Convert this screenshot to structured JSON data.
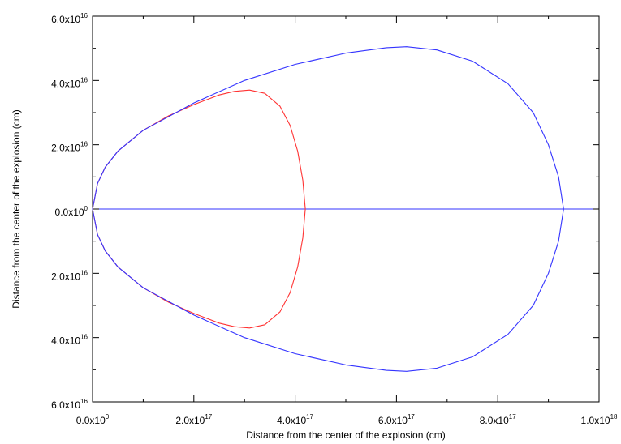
{
  "chart_data": {
    "type": "line",
    "title": "",
    "xlabel": "Distance from the center of the explosion (cm)",
    "ylabel": "Distance from the center of the explosion (cm)",
    "xlim": [
      0,
      1e+18
    ],
    "ylim": [
      -6e+16,
      6e+16
    ],
    "grid": false,
    "legend": "none",
    "x_ticks": [
      {
        "value": 0,
        "mantissa": "0.0",
        "exp": "0"
      },
      {
        "value": 2e+17,
        "mantissa": "2.0",
        "exp": "17"
      },
      {
        "value": 4e+17,
        "mantissa": "4.0",
        "exp": "17"
      },
      {
        "value": 6e+17,
        "mantissa": "6.0",
        "exp": "17"
      },
      {
        "value": 8e+17,
        "mantissa": "8.0",
        "exp": "17"
      },
      {
        "value": 1e+18,
        "mantissa": "1.0",
        "exp": "18"
      }
    ],
    "y_ticks": [
      {
        "value": 6e+16,
        "mantissa": "6.0",
        "exp": "16"
      },
      {
        "value": 4e+16,
        "mantissa": "4.0",
        "exp": "16"
      },
      {
        "value": 2e+16,
        "mantissa": "2.0",
        "exp": "16"
      },
      {
        "value": 0,
        "mantissa": "0.0",
        "exp": "0"
      },
      {
        "value": -2e+16,
        "mantissa": "2.0",
        "exp": "16"
      },
      {
        "value": -4e+16,
        "mantissa": "4.0",
        "exp": "16"
      },
      {
        "value": -6e+16,
        "mantissa": "6.0",
        "exp": "16"
      }
    ],
    "series": [
      {
        "color": "#ff3333",
        "x": [
          0,
          1e+16,
          2.5e+16,
          5e+16,
          1e+17,
          1.5e+17,
          2e+17,
          2.5e+17,
          2.8e+17,
          3.1e+17,
          3.4e+17,
          3.7e+17,
          3.9e+17,
          4.05e+17,
          4.15e+17,
          4.2e+17,
          4.15e+17,
          4.05e+17,
          3.9e+17,
          3.7e+17,
          3.4e+17,
          3.1e+17,
          2.8e+17,
          2.5e+17,
          2e+17,
          1.5e+17,
          1e+17,
          5e+16,
          2.5e+16,
          1e+16,
          0
        ],
        "y": [
          0,
          8000000000000000.0,
          1.3e+16,
          1.8e+16,
          2.45e+16,
          2.9e+16,
          3.25e+16,
          3.55e+16,
          3.66e+16,
          3.7e+16,
          3.6e+16,
          3.2e+16,
          2.6e+16,
          1.8e+16,
          9000000000000000.0,
          0,
          -9000000000000000.0,
          -1.8e+16,
          -2.6e+16,
          -3.2e+16,
          -3.6e+16,
          -3.7e+16,
          -3.66e+16,
          -3.55e+16,
          -3.25e+16,
          -2.9e+16,
          -2.45e+16,
          -1.8e+16,
          -1.3e+16,
          -8000000000000000.0,
          0
        ]
      },
      {
        "color": "#3333ff",
        "x": [
          0,
          1e+16,
          2.5e+16,
          5e+16,
          1e+17,
          2e+17,
          3e+17,
          4e+17,
          5e+17,
          5.8e+17,
          6.2e+17,
          6.8e+17,
          7.5e+17,
          8.2e+17,
          8.7e+17,
          9e+17,
          9.2e+17,
          9.3e+17,
          9.2e+17,
          9e+17,
          8.7e+17,
          8.2e+17,
          7.5e+17,
          6.8e+17,
          6.2e+17,
          5.8e+17,
          5e+17,
          4e+17,
          3e+17,
          2e+17,
          1e+17,
          5e+16,
          2.5e+16,
          1e+16,
          0
        ],
        "y": [
          0,
          8000000000000000.0,
          1.3e+16,
          1.8e+16,
          2.45e+16,
          3.3e+16,
          4e+16,
          4.5e+16,
          4.85e+16,
          5.02e+16,
          5.05e+16,
          4.95e+16,
          4.6e+16,
          3.9e+16,
          3e+16,
          2e+16,
          1e+16,
          0,
          -1e+16,
          -2e+16,
          -3e+16,
          -3.9e+16,
          -4.6e+16,
          -4.95e+16,
          -5.05e+16,
          -5.02e+16,
          -4.85e+16,
          -4.5e+16,
          -4e+16,
          -3.3e+16,
          -2.45e+16,
          -1.8e+16,
          -1.3e+16,
          -8000000000000000.0,
          0
        ]
      }
    ],
    "reference_lines": [
      {
        "type": "horizontal",
        "y": 0,
        "color": "#3333ff"
      }
    ]
  }
}
